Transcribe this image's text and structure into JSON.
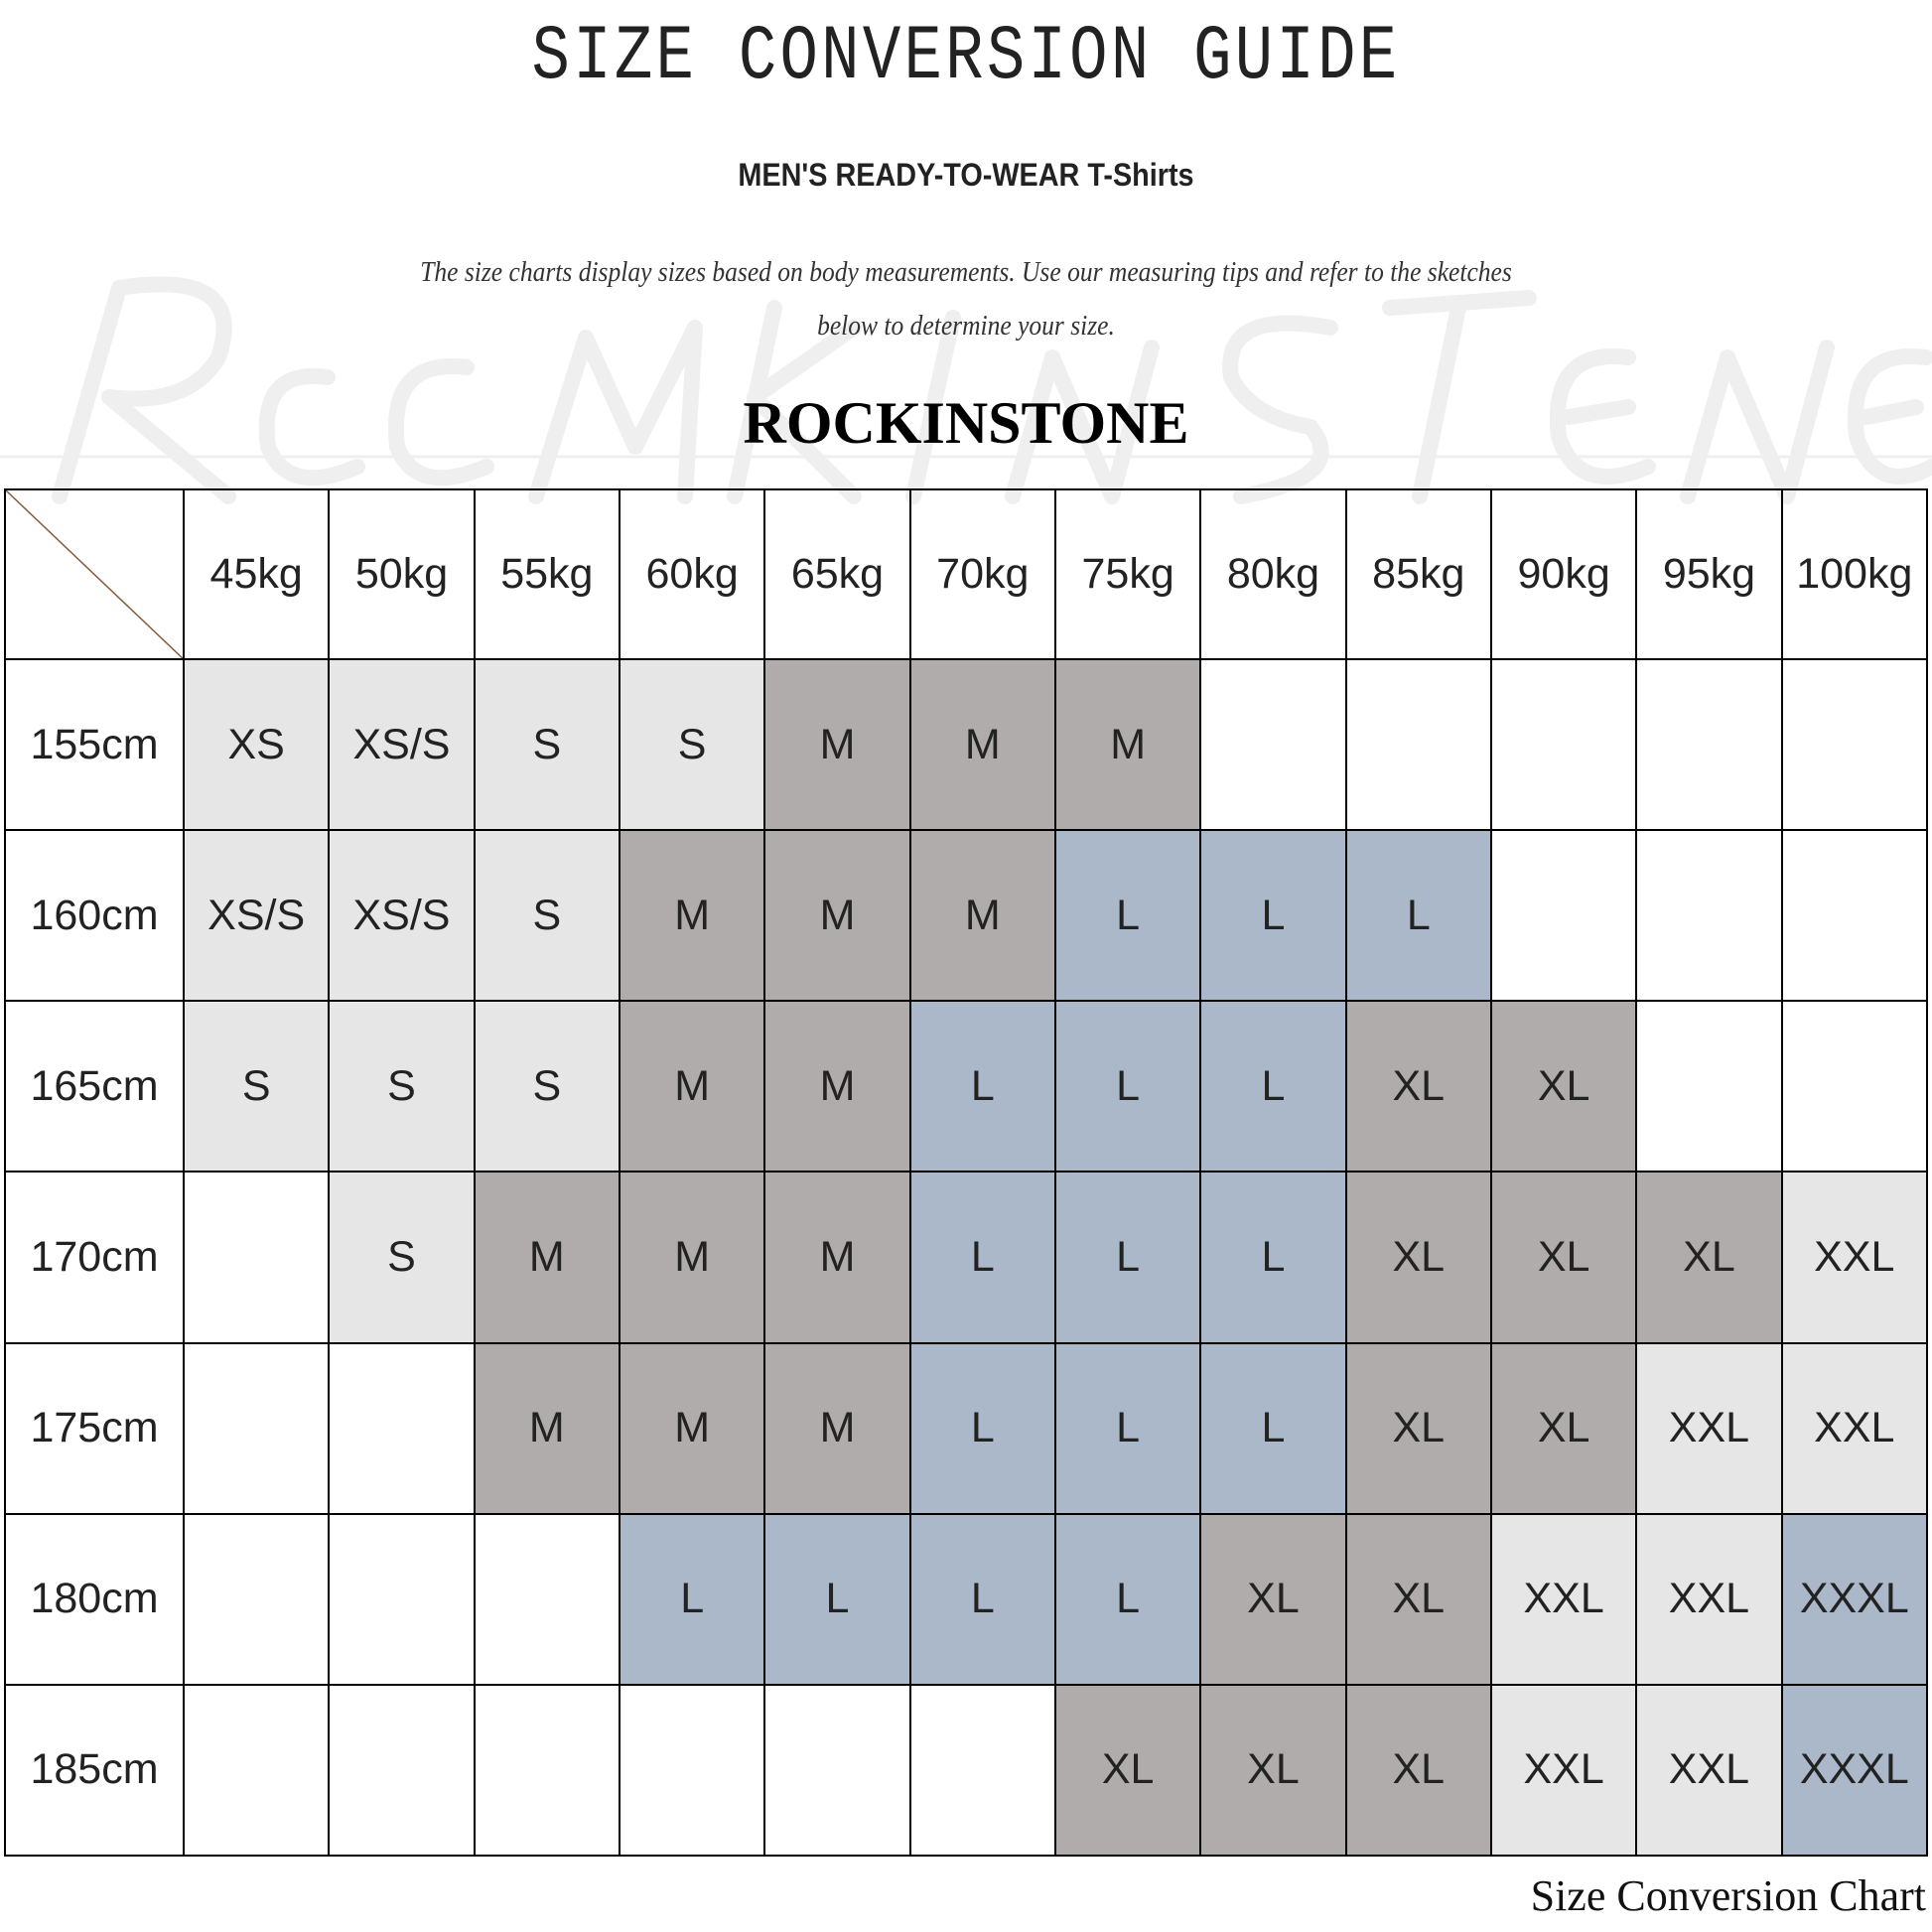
{
  "title": "SIZE CONVERSION GUIDE",
  "subtitle": "MEN'S READY-TO-WEAR T-Shirts",
  "intro_line1": "The size charts display sizes based on body measurements. Use our measuring tips and refer to the sketches",
  "intro_line2": "below to determine your size.",
  "watermark": "Rockinstone",
  "brand": "ROCKINSTONE",
  "footer": "Size Conversion Chart",
  "colors": {
    "light": "#e6e6e6",
    "dark": "#b0acab",
    "blue": "#abb8ca",
    "diagonal": "#8b5a3c"
  },
  "size_colors": {
    "XS": "light",
    "XS/S": "light",
    "S": "light",
    "M": "dark",
    "L": "blue",
    "XL": "dark",
    "XXL": "light",
    "XXXL": "blue"
  },
  "table": {
    "columns": [
      "45kg",
      "50kg",
      "55kg",
      "60kg",
      "65kg",
      "70kg",
      "75kg",
      "80kg",
      "85kg",
      "90kg",
      "95kg",
      "100kg"
    ],
    "rows": [
      {
        "height": "155cm",
        "cells": [
          "XS",
          "XS/S",
          "S",
          "S",
          "M",
          "M",
          "M",
          "",
          "",
          "",
          "",
          ""
        ]
      },
      {
        "height": "160cm",
        "cells": [
          "XS/S",
          "XS/S",
          "S",
          "M",
          "M",
          "M",
          "L",
          "L",
          "L",
          "",
          "",
          ""
        ]
      },
      {
        "height": "165cm",
        "cells": [
          "S",
          "S",
          "S",
          "M",
          "M",
          "L",
          "L",
          "L",
          "XL",
          "XL",
          "",
          ""
        ]
      },
      {
        "height": "170cm",
        "cells": [
          "",
          "S",
          "M",
          "M",
          "M",
          "L",
          "L",
          "L",
          "XL",
          "XL",
          "XL",
          "XXL"
        ]
      },
      {
        "height": "175cm",
        "cells": [
          "",
          "",
          "M",
          "M",
          "M",
          "L",
          "L",
          "L",
          "XL",
          "XL",
          "XXL",
          "XXL"
        ]
      },
      {
        "height": "180cm",
        "cells": [
          "",
          "",
          "",
          "L",
          "L",
          "L",
          "L",
          "XL",
          "XL",
          "XXL",
          "XXL",
          "XXXL"
        ]
      },
      {
        "height": "185cm",
        "cells": [
          "",
          "",
          "",
          "",
          "",
          "",
          "XL",
          "XL",
          "XL",
          "XXL",
          "XXL",
          "XXXL"
        ]
      }
    ]
  }
}
